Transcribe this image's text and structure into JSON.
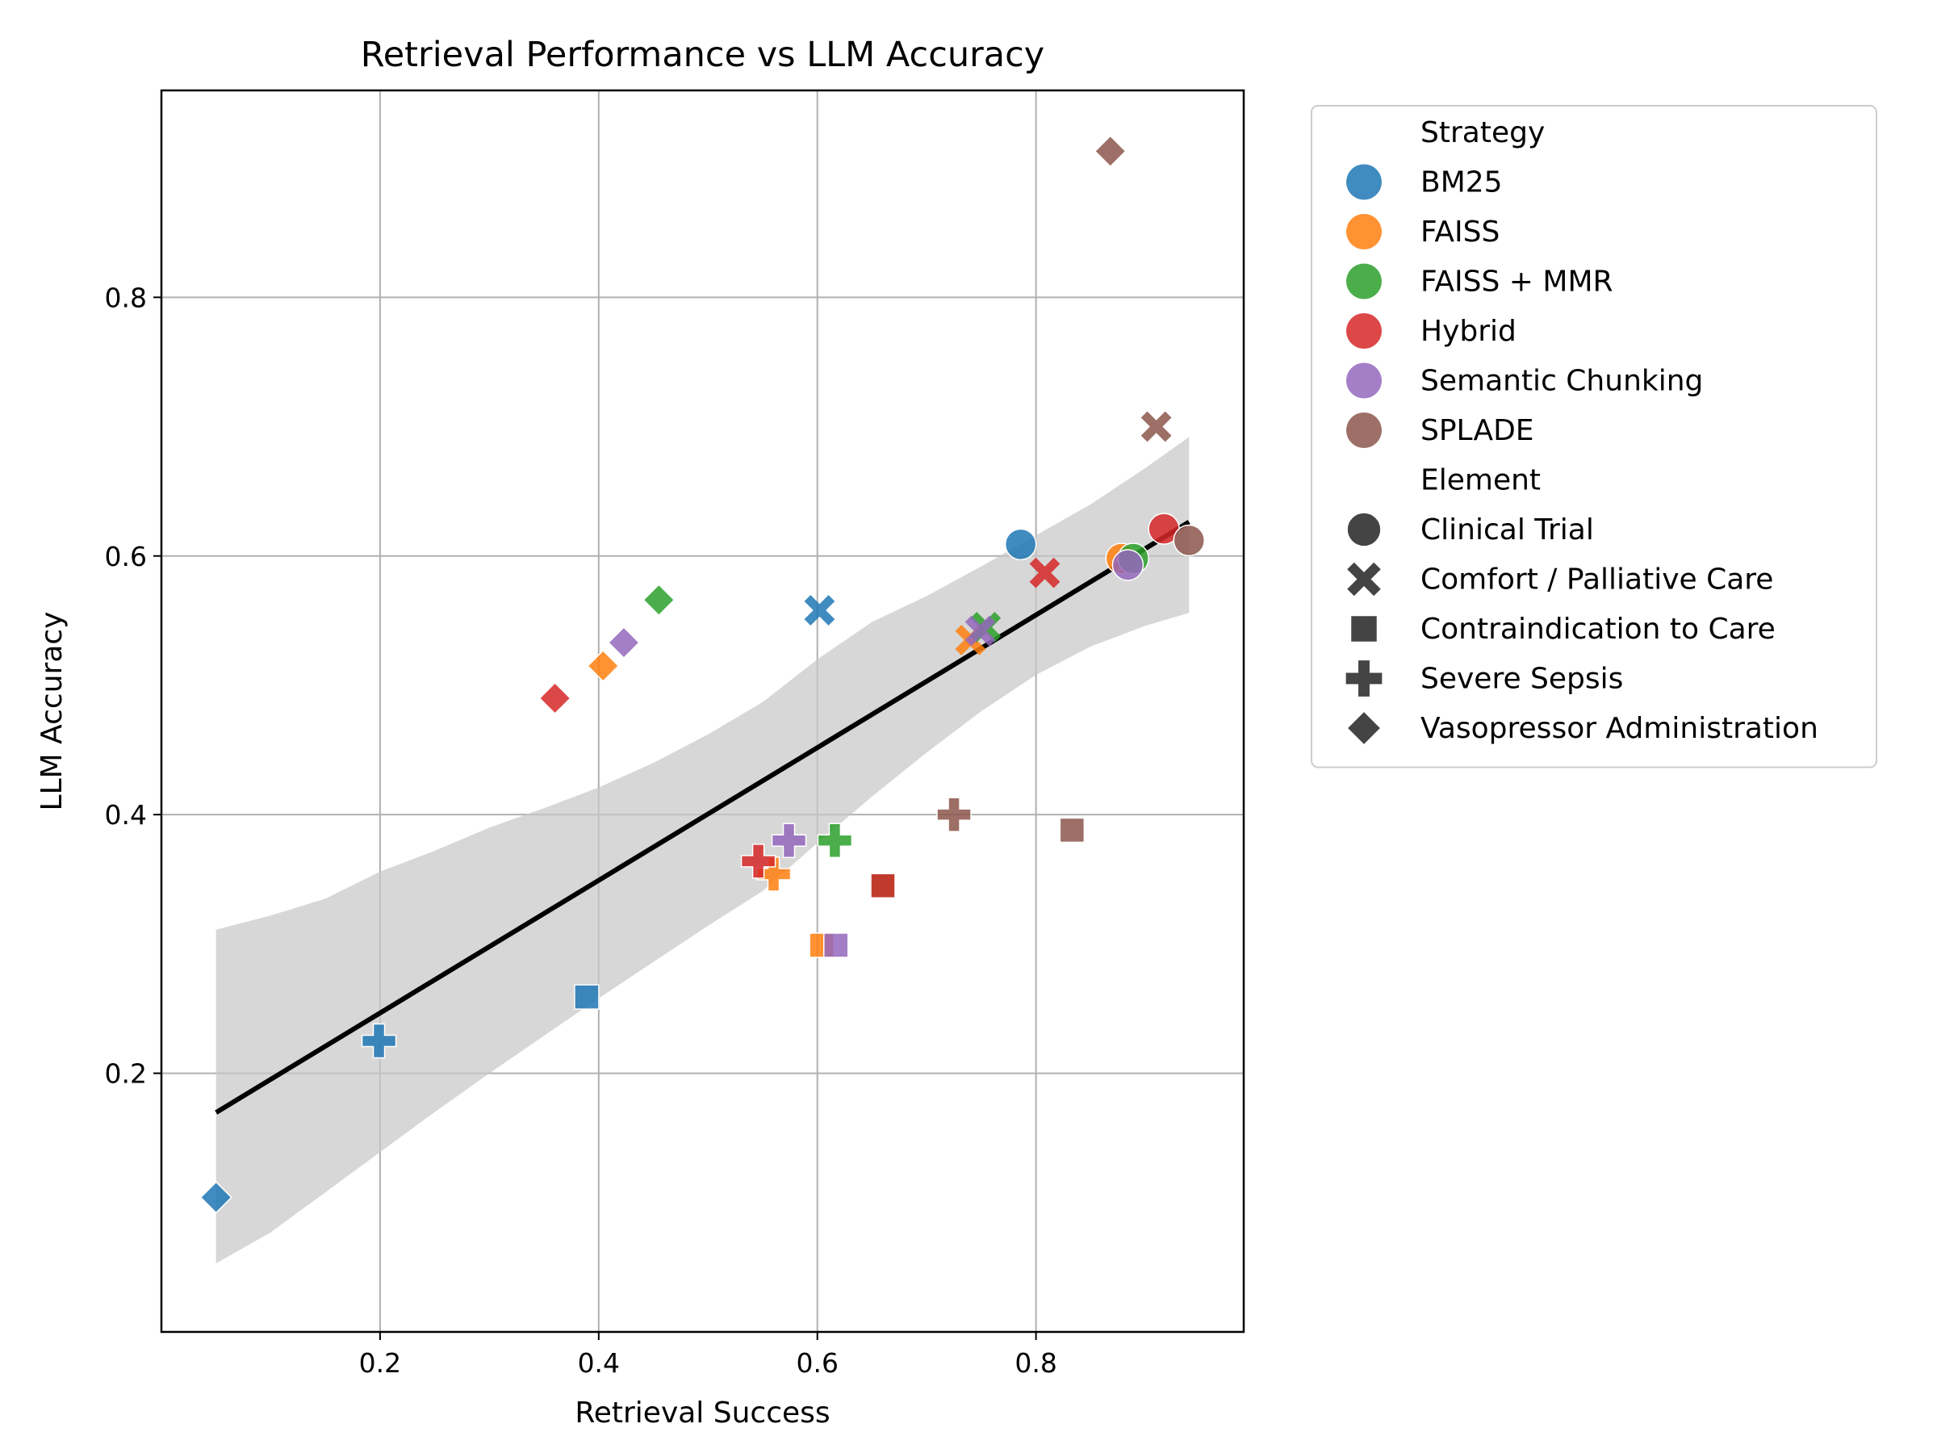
{
  "chart_data": {
    "type": "scatter",
    "title": "Retrieval Performance vs LLM Accuracy",
    "xlabel": "Retrieval Success",
    "ylabel": "LLM Accuracy",
    "xlim": [
      0.0,
      0.99
    ],
    "ylim": [
      0.0,
      0.96
    ],
    "xticks": [
      0.2,
      0.4,
      0.6,
      0.8
    ],
    "yticks": [
      0.2,
      0.4,
      0.6,
      0.8
    ],
    "xtick_labels": [
      "0.2",
      "0.4",
      "0.6",
      "0.8"
    ],
    "ytick_labels": [
      "0.2",
      "0.4",
      "0.6",
      "0.8"
    ],
    "grid": true,
    "legend": {
      "placement": "outside-right",
      "hue_title": "Strategy",
      "style_title": "Element"
    },
    "strategies": [
      {
        "name": "BM25",
        "color": "#1f77b4"
      },
      {
        "name": "FAISS",
        "color": "#ff7f0e"
      },
      {
        "name": "FAISS + MMR",
        "color": "#2ca02c"
      },
      {
        "name": "Hybrid",
        "color": "#d62728"
      },
      {
        "name": "Semantic Chunking",
        "color": "#9467bd"
      },
      {
        "name": "SPLADE",
        "color": "#8c564b"
      }
    ],
    "elements": [
      {
        "name": "Clinical Trial",
        "marker": "circle"
      },
      {
        "name": "Comfort / Palliative Care",
        "marker": "x"
      },
      {
        "name": "Contraindication to Care",
        "marker": "square"
      },
      {
        "name": "Severe Sepsis",
        "marker": "plus"
      },
      {
        "name": "Vasopressor Administration",
        "marker": "diamond"
      }
    ],
    "series": [
      {
        "strategy": "BM25",
        "points": [
          {
            "element": "Clinical Trial",
            "x": 0.786,
            "y": 0.609
          },
          {
            "element": "Comfort / Palliative Care",
            "x": 0.602,
            "y": 0.558
          },
          {
            "element": "Contraindication to Care",
            "x": 0.389,
            "y": 0.259
          },
          {
            "element": "Severe Sepsis",
            "x": 0.199,
            "y": 0.225
          },
          {
            "element": "Vasopressor Administration",
            "x": 0.05,
            "y": 0.104
          }
        ]
      },
      {
        "strategy": "FAISS",
        "points": [
          {
            "element": "Clinical Trial",
            "x": 0.878,
            "y": 0.598
          },
          {
            "element": "Comfort / Palliative Care",
            "x": 0.74,
            "y": 0.535
          },
          {
            "element": "Contraindication to Care",
            "x": 0.604,
            "y": 0.299
          },
          {
            "element": "Severe Sepsis",
            "x": 0.56,
            "y": 0.354
          },
          {
            "element": "Vasopressor Administration",
            "x": 0.404,
            "y": 0.515
          }
        ]
      },
      {
        "strategy": "FAISS + MMR",
        "points": [
          {
            "element": "Clinical Trial",
            "x": 0.889,
            "y": 0.598
          },
          {
            "element": "Comfort / Palliative Care",
            "x": 0.754,
            "y": 0.545
          },
          {
            "element": "Contraindication to Care",
            "x": 0.66,
            "y": 0.345
          },
          {
            "element": "Severe Sepsis",
            "x": 0.616,
            "y": 0.38
          },
          {
            "element": "Vasopressor Administration",
            "x": 0.455,
            "y": 0.566
          }
        ]
      },
      {
        "strategy": "Hybrid",
        "points": [
          {
            "element": "Clinical Trial",
            "x": 0.917,
            "y": 0.621
          },
          {
            "element": "Comfort / Palliative Care",
            "x": 0.808,
            "y": 0.587
          },
          {
            "element": "Contraindication to Care",
            "x": 0.66,
            "y": 0.345
          },
          {
            "element": "Severe Sepsis",
            "x": 0.546,
            "y": 0.364
          },
          {
            "element": "Vasopressor Administration",
            "x": 0.36,
            "y": 0.49
          }
        ]
      },
      {
        "strategy": "Semantic Chunking",
        "points": [
          {
            "element": "Clinical Trial",
            "x": 0.884,
            "y": 0.593
          },
          {
            "element": "Comfort / Palliative Care",
            "x": 0.749,
            "y": 0.542
          },
          {
            "element": "Contraindication to Care",
            "x": 0.617,
            "y": 0.299
          },
          {
            "element": "Severe Sepsis",
            "x": 0.574,
            "y": 0.38
          },
          {
            "element": "Vasopressor Administration",
            "x": 0.423,
            "y": 0.533
          }
        ]
      },
      {
        "strategy": "SPLADE",
        "points": [
          {
            "element": "Clinical Trial",
            "x": 0.94,
            "y": 0.612
          },
          {
            "element": "Comfort / Palliative Care",
            "x": 0.91,
            "y": 0.7
          },
          {
            "element": "Contraindication to Care",
            "x": 0.833,
            "y": 0.388
          },
          {
            "element": "Severe Sepsis",
            "x": 0.725,
            "y": 0.4
          },
          {
            "element": "Vasopressor Administration",
            "x": 0.868,
            "y": 0.913
          }
        ]
      }
    ],
    "regression": {
      "x_range": [
        0.05,
        0.94
      ],
      "slope": 0.513,
      "intercept": 0.144,
      "ci": {
        "x": [
          0.05,
          0.1,
          0.15,
          0.2,
          0.25,
          0.3,
          0.35,
          0.4,
          0.45,
          0.5,
          0.55,
          0.6,
          0.65,
          0.7,
          0.75,
          0.8,
          0.85,
          0.9,
          0.94
        ],
        "lower": [
          0.053,
          0.077,
          0.108,
          0.139,
          0.17,
          0.2,
          0.229,
          0.258,
          0.286,
          0.314,
          0.341,
          0.378,
          0.414,
          0.448,
          0.48,
          0.508,
          0.53,
          0.546,
          0.556
        ],
        "upper": [
          0.311,
          0.322,
          0.335,
          0.356,
          0.372,
          0.39,
          0.405,
          0.421,
          0.44,
          0.462,
          0.487,
          0.52,
          0.549,
          0.569,
          0.592,
          0.616,
          0.64,
          0.668,
          0.692
        ]
      }
    }
  }
}
